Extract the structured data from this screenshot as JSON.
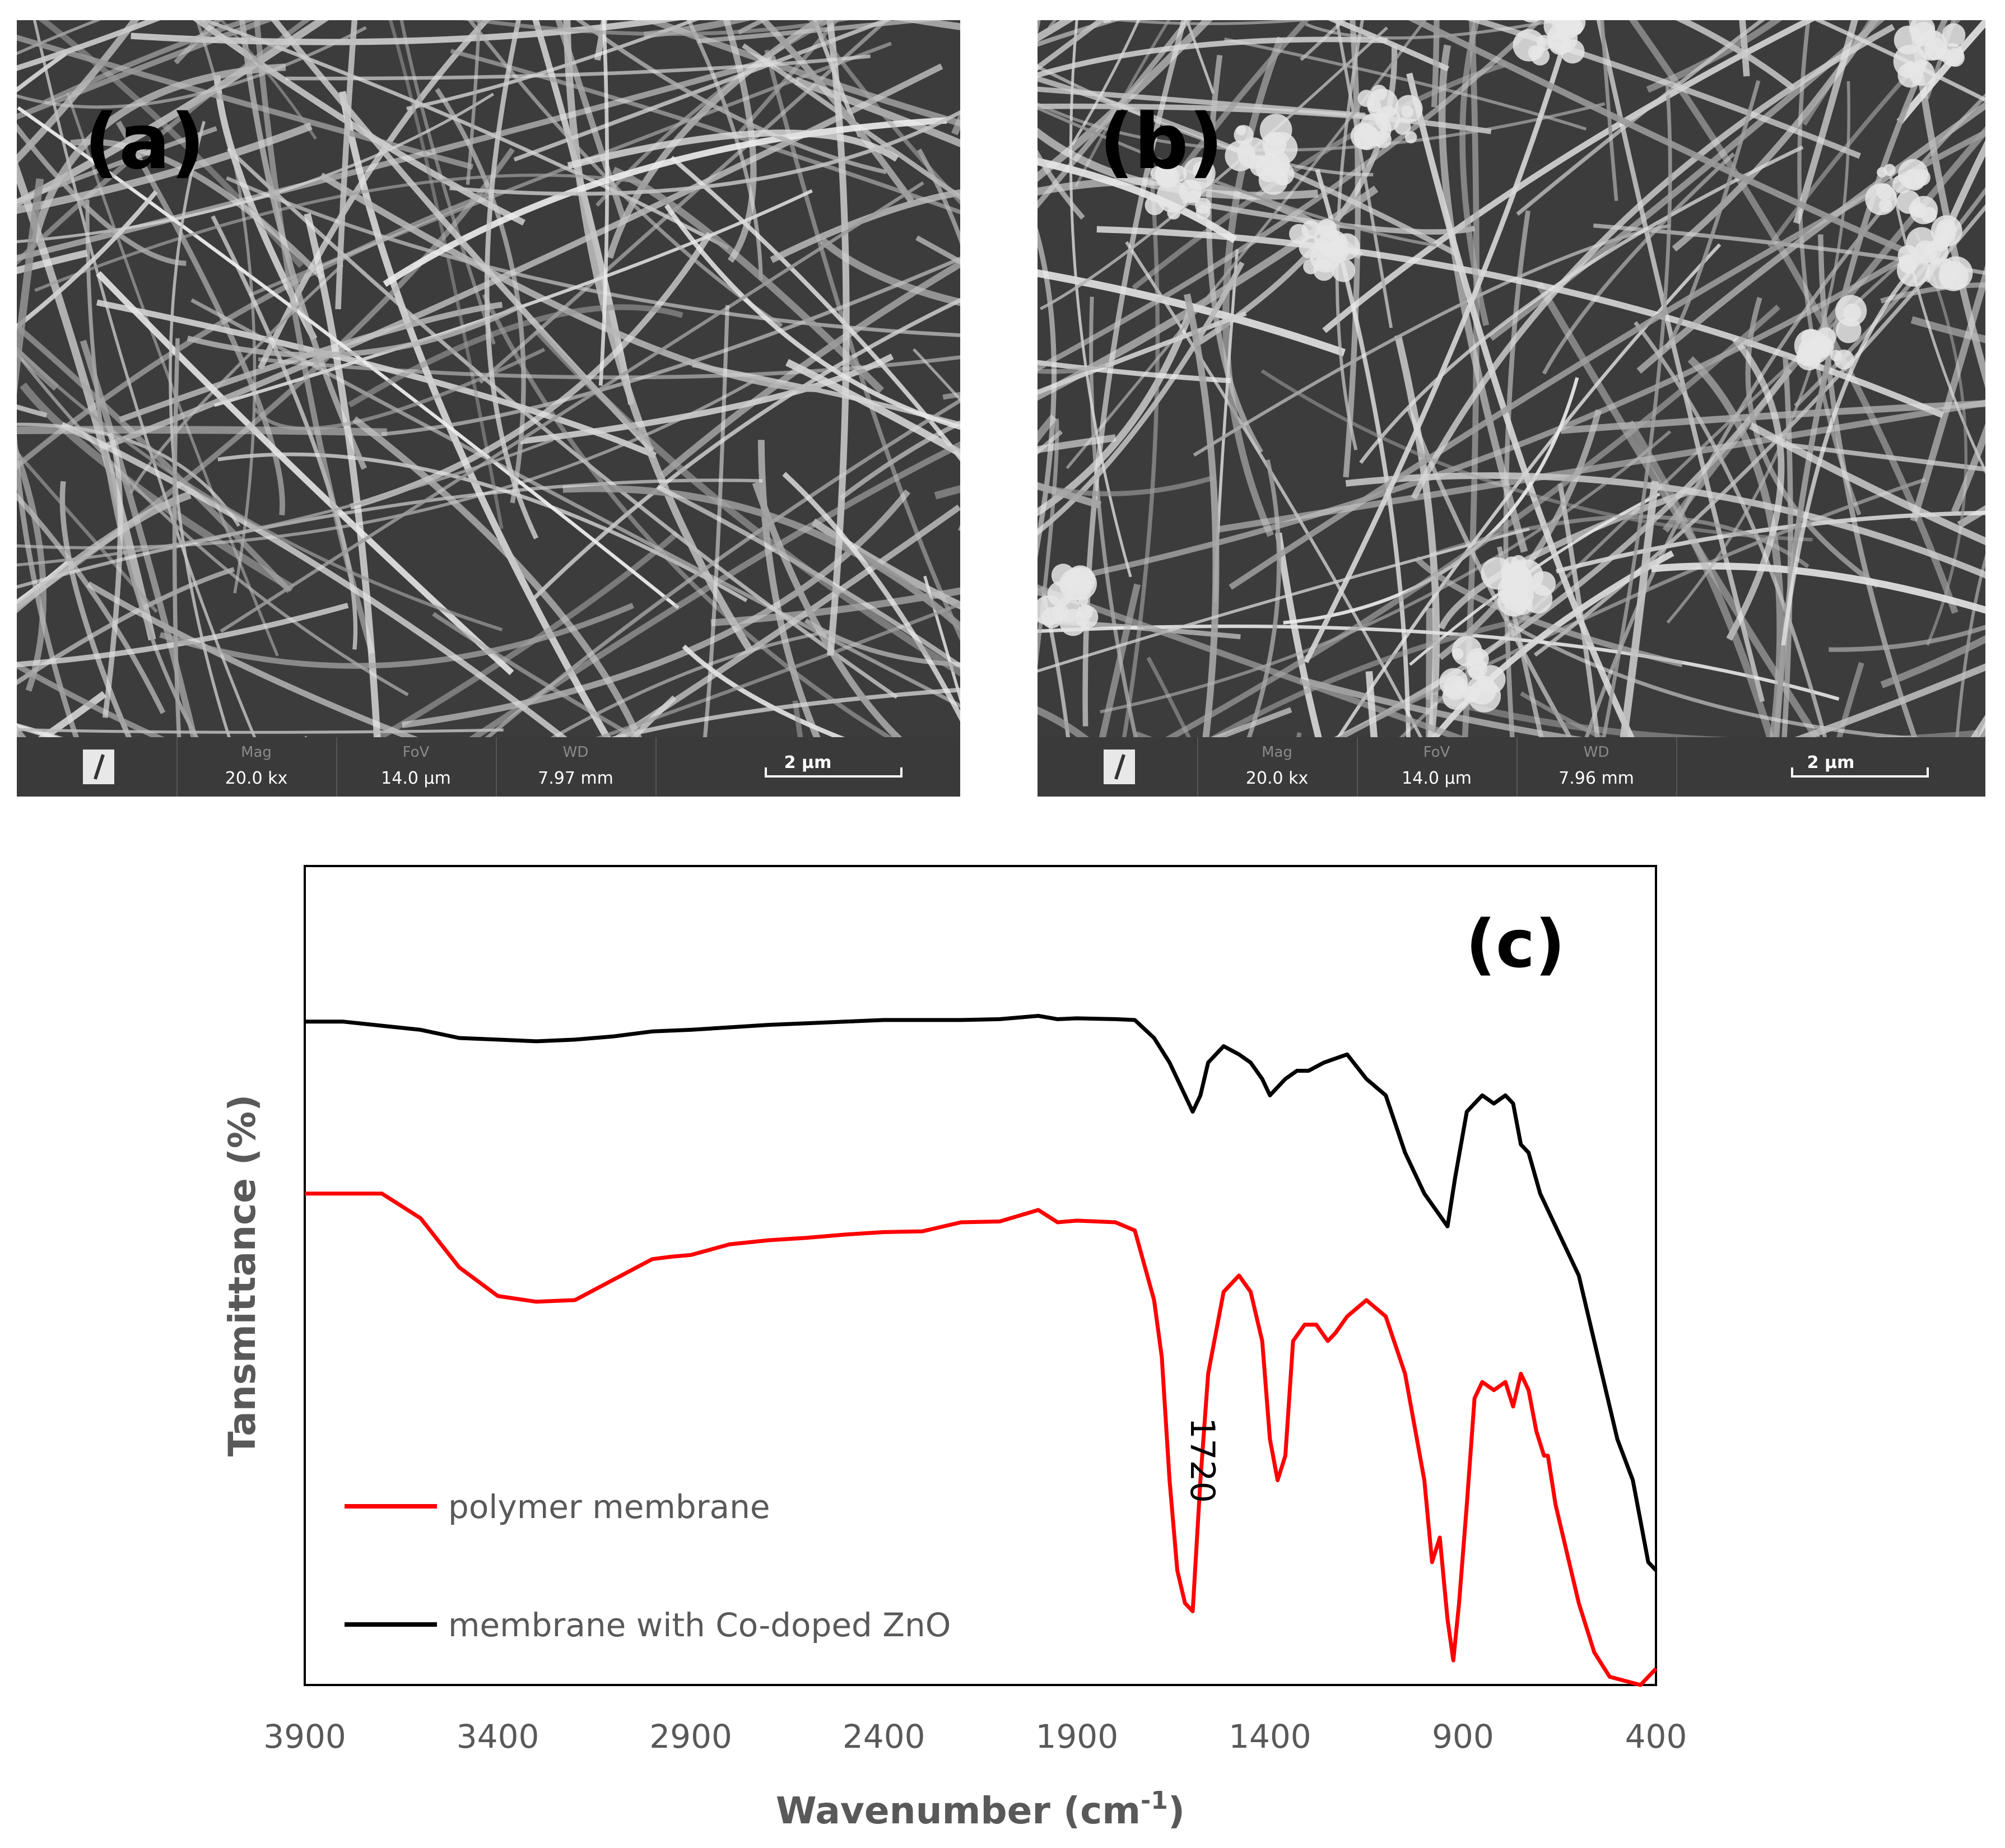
{
  "panels": [
    {
      "id": "a",
      "label": "(a)",
      "infobar": {
        "mag_label": "Mag",
        "mag_value": "20.0 kx",
        "fov_label": "FoV",
        "fov_value": "14.0 µm",
        "wd_label": "WD",
        "wd_value": "7.97 mm",
        "scale_label": "2 µm"
      }
    },
    {
      "id": "b",
      "label": "(b)",
      "infobar": {
        "mag_label": "Mag",
        "mag_value": "20.0 kx",
        "fov_label": "FoV",
        "fov_value": "14.0 µm",
        "wd_label": "WD",
        "wd_value": "7.96 mm",
        "scale_label": "2 µm"
      }
    }
  ],
  "chart_data": {
    "type": "line",
    "panel_label": "(c)",
    "xlabel_main": "Wavenumber (cm",
    "xlabel_sup": "-1",
    "xlabel_end": ")",
    "ylabel": "Tansmittance (%)",
    "xlim": [
      3900,
      400
    ],
    "x_reversed": true,
    "ylim": [
      0,
      100
    ],
    "x_ticks": [
      "3900",
      "3400",
      "2900",
      "2400",
      "1900",
      "1400",
      "900",
      "400"
    ],
    "y_ticks_shown": false,
    "grid": false,
    "legend_position": "bottom-left",
    "annotation": {
      "text": "1720",
      "x": 1590,
      "y": 32
    },
    "colors": {
      "polymer": "#ff0000",
      "codoped": "#000000"
    },
    "series": [
      {
        "name": "polymer membrane",
        "color": "#ff0000",
        "points": [
          [
            3900,
            60
          ],
          [
            3800,
            60
          ],
          [
            3700,
            60
          ],
          [
            3600,
            57
          ],
          [
            3500,
            51
          ],
          [
            3400,
            47.5
          ],
          [
            3300,
            46.8
          ],
          [
            3200,
            47
          ],
          [
            3100,
            49.5
          ],
          [
            3000,
            52
          ],
          [
            2950,
            52.3
          ],
          [
            2900,
            52.5
          ],
          [
            2800,
            53.8
          ],
          [
            2700,
            54.3
          ],
          [
            2600,
            54.6
          ],
          [
            2500,
            55
          ],
          [
            2400,
            55.3
          ],
          [
            2300,
            55.4
          ],
          [
            2200,
            56.5
          ],
          [
            2100,
            56.6
          ],
          [
            2000,
            58
          ],
          [
            1950,
            56.5
          ],
          [
            1900,
            56.7
          ],
          [
            1800,
            56.5
          ],
          [
            1750,
            55.5
          ],
          [
            1700,
            47
          ],
          [
            1680,
            40
          ],
          [
            1660,
            25
          ],
          [
            1640,
            14
          ],
          [
            1620,
            10
          ],
          [
            1600,
            9
          ],
          [
            1580,
            25
          ],
          [
            1560,
            38
          ],
          [
            1520,
            48
          ],
          [
            1480,
            50
          ],
          [
            1450,
            48
          ],
          [
            1420,
            42
          ],
          [
            1400,
            30
          ],
          [
            1380,
            25
          ],
          [
            1360,
            28
          ],
          [
            1340,
            42
          ],
          [
            1310,
            44
          ],
          [
            1280,
            44
          ],
          [
            1250,
            42
          ],
          [
            1230,
            43
          ],
          [
            1200,
            45
          ],
          [
            1150,
            47
          ],
          [
            1100,
            45
          ],
          [
            1050,
            38
          ],
          [
            1000,
            25
          ],
          [
            980,
            15
          ],
          [
            960,
            18
          ],
          [
            940,
            8
          ],
          [
            925,
            3
          ],
          [
            910,
            10
          ],
          [
            890,
            22
          ],
          [
            870,
            35
          ],
          [
            850,
            37
          ],
          [
            820,
            36
          ],
          [
            790,
            37
          ],
          [
            770,
            34
          ],
          [
            750,
            38
          ],
          [
            730,
            36
          ],
          [
            710,
            31
          ],
          [
            690,
            28
          ],
          [
            680,
            28
          ],
          [
            660,
            22
          ],
          [
            640,
            18
          ],
          [
            600,
            10
          ],
          [
            560,
            4
          ],
          [
            520,
            1
          ],
          [
            480,
            0.5
          ],
          [
            440,
            0
          ],
          [
            420,
            1
          ],
          [
            400,
            2
          ]
        ]
      },
      {
        "name": "membrane with Co-doped ZnO",
        "color": "#000000",
        "points": [
          [
            3900,
            81
          ],
          [
            3800,
            81
          ],
          [
            3700,
            80.5
          ],
          [
            3600,
            80
          ],
          [
            3500,
            79
          ],
          [
            3400,
            78.8
          ],
          [
            3300,
            78.6
          ],
          [
            3200,
            78.8
          ],
          [
            3100,
            79.2
          ],
          [
            3000,
            79.8
          ],
          [
            2900,
            80
          ],
          [
            2800,
            80.3
          ],
          [
            2700,
            80.6
          ],
          [
            2600,
            80.8
          ],
          [
            2500,
            81
          ],
          [
            2400,
            81.2
          ],
          [
            2300,
            81.2
          ],
          [
            2200,
            81.2
          ],
          [
            2100,
            81.3
          ],
          [
            2000,
            81.7
          ],
          [
            1950,
            81.3
          ],
          [
            1900,
            81.4
          ],
          [
            1800,
            81.3
          ],
          [
            1750,
            81.2
          ],
          [
            1700,
            79
          ],
          [
            1660,
            76
          ],
          [
            1630,
            73
          ],
          [
            1600,
            70
          ],
          [
            1580,
            72
          ],
          [
            1560,
            76
          ],
          [
            1520,
            78
          ],
          [
            1480,
            77
          ],
          [
            1450,
            76
          ],
          [
            1420,
            74
          ],
          [
            1400,
            72
          ],
          [
            1380,
            73
          ],
          [
            1360,
            74
          ],
          [
            1330,
            75
          ],
          [
            1300,
            75
          ],
          [
            1260,
            76
          ],
          [
            1230,
            76.5
          ],
          [
            1200,
            77
          ],
          [
            1150,
            74
          ],
          [
            1100,
            72
          ],
          [
            1050,
            65
          ],
          [
            1000,
            60
          ],
          [
            970,
            58
          ],
          [
            940,
            56
          ],
          [
            920,
            62
          ],
          [
            890,
            70
          ],
          [
            870,
            71
          ],
          [
            850,
            72
          ],
          [
            820,
            71
          ],
          [
            790,
            72
          ],
          [
            770,
            71
          ],
          [
            750,
            66
          ],
          [
            730,
            65
          ],
          [
            700,
            60
          ],
          [
            650,
            55
          ],
          [
            600,
            50
          ],
          [
            550,
            40
          ],
          [
            500,
            30
          ],
          [
            460,
            25
          ],
          [
            420,
            15
          ],
          [
            400,
            14
          ]
        ]
      }
    ]
  }
}
